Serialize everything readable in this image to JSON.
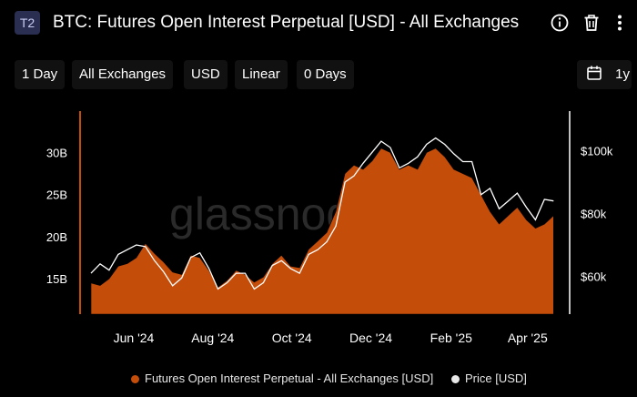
{
  "header": {
    "badge": "T2",
    "title": "BTC: Futures Open Interest Perpetual [USD] - All Exchanges",
    "icons": [
      "info-icon",
      "trash-icon",
      "more-icon"
    ]
  },
  "toolbar": {
    "resolution": "1 Day",
    "exchange": "All Exchanges",
    "currency": "USD",
    "scale": "Linear",
    "moving_average": "0 Days",
    "range": "1y",
    "range_icon": "calendar-icon"
  },
  "colors": {
    "oi": "#c44d0a",
    "price": "#ffffff",
    "background": "#000000",
    "axis_text": "#ffffff"
  },
  "watermark": "glassnode",
  "chart_data": {
    "type": "area",
    "x_ticks": [
      "Jun '24",
      "Aug '24",
      "Oct '24",
      "Dec '24",
      "Feb '25",
      "Apr '25"
    ],
    "y_left_ticks": [
      "15B",
      "20B",
      "25B",
      "30B"
    ],
    "y_right_ticks": [
      "$60k",
      "$80k",
      "$100k"
    ],
    "y_left_range": [
      10.8,
      34.7
    ],
    "y_right_range": [
      48000,
      112000
    ],
    "grid": false,
    "legend_position": "bottom",
    "series": [
      {
        "name": "Futures Open Interest Perpetual - All Exchanges [USD]",
        "axis": "left",
        "x": [
          "2024-04-29",
          "2024-05-06",
          "2024-05-13",
          "2024-05-20",
          "2024-05-27",
          "2024-06-03",
          "2024-06-10",
          "2024-06-17",
          "2024-06-24",
          "2024-07-01",
          "2024-07-08",
          "2024-07-15",
          "2024-07-22",
          "2024-07-29",
          "2024-08-05",
          "2024-08-12",
          "2024-08-19",
          "2024-08-26",
          "2024-09-02",
          "2024-09-09",
          "2024-09-16",
          "2024-09-23",
          "2024-09-30",
          "2024-10-07",
          "2024-10-14",
          "2024-10-21",
          "2024-10-28",
          "2024-11-04",
          "2024-11-11",
          "2024-11-18",
          "2024-11-25",
          "2024-12-02",
          "2024-12-09",
          "2024-12-16",
          "2024-12-23",
          "2024-12-30",
          "2025-01-06",
          "2025-01-13",
          "2025-01-20",
          "2025-01-27",
          "2025-02-03",
          "2025-02-10",
          "2025-02-17",
          "2025-02-24",
          "2025-03-03",
          "2025-03-10",
          "2025-03-17",
          "2025-03-24",
          "2025-03-31",
          "2025-04-07",
          "2025-04-14",
          "2025-04-21"
        ],
        "y": [
          14.5,
          14.2,
          15.0,
          16.5,
          16.8,
          17.5,
          19.2,
          18.0,
          17.0,
          15.8,
          15.5,
          17.8,
          17.5,
          16.0,
          14.0,
          14.8,
          16.0,
          15.5,
          14.6,
          15.2,
          16.8,
          17.8,
          16.5,
          16.3,
          18.5,
          19.5,
          20.5,
          23.0,
          27.5,
          28.5,
          28.0,
          29.0,
          30.5,
          30.0,
          28.0,
          28.5,
          28.0,
          30.0,
          30.5,
          29.5,
          28.0,
          27.5,
          27.0,
          25.0,
          23.0,
          21.5,
          22.5,
          23.5,
          22.0,
          21.0,
          21.5,
          22.5
        ]
      },
      {
        "name": "Price [USD]",
        "axis": "right",
        "x": [
          "2024-04-29",
          "2024-05-06",
          "2024-05-13",
          "2024-05-20",
          "2024-05-27",
          "2024-06-03",
          "2024-06-10",
          "2024-06-17",
          "2024-06-24",
          "2024-07-01",
          "2024-07-08",
          "2024-07-15",
          "2024-07-22",
          "2024-07-29",
          "2024-08-05",
          "2024-08-12",
          "2024-08-19",
          "2024-08-26",
          "2024-09-02",
          "2024-09-09",
          "2024-09-16",
          "2024-09-23",
          "2024-09-30",
          "2024-10-07",
          "2024-10-14",
          "2024-10-21",
          "2024-10-28",
          "2024-11-04",
          "2024-11-11",
          "2024-11-18",
          "2024-11-25",
          "2024-12-02",
          "2024-12-09",
          "2024-12-16",
          "2024-12-23",
          "2024-12-30",
          "2025-01-06",
          "2025-01-13",
          "2025-01-20",
          "2025-01-27",
          "2025-02-03",
          "2025-02-10",
          "2025-02-17",
          "2025-02-24",
          "2025-03-03",
          "2025-03-10",
          "2025-03-17",
          "2025-03-24",
          "2025-03-31",
          "2025-04-07",
          "2025-04-14",
          "2025-04-21"
        ],
        "y": [
          61000,
          64000,
          62000,
          67000,
          68500,
          70000,
          69500,
          65000,
          61500,
          57000,
          59500,
          66000,
          67500,
          62500,
          56000,
          58000,
          61000,
          61000,
          56000,
          58000,
          63500,
          65000,
          62500,
          61000,
          67000,
          68500,
          71000,
          76000,
          90000,
          92000,
          96000,
          99500,
          103000,
          101000,
          94500,
          96000,
          98000,
          102000,
          104000,
          102000,
          99000,
          96500,
          96500,
          86000,
          88000,
          81500,
          84000,
          86500,
          82000,
          78000,
          84500,
          84000
        ]
      }
    ]
  },
  "legend": {
    "oi_label": "Futures Open Interest Perpetual - All Exchanges [USD]",
    "price_label": "Price [USD]"
  }
}
